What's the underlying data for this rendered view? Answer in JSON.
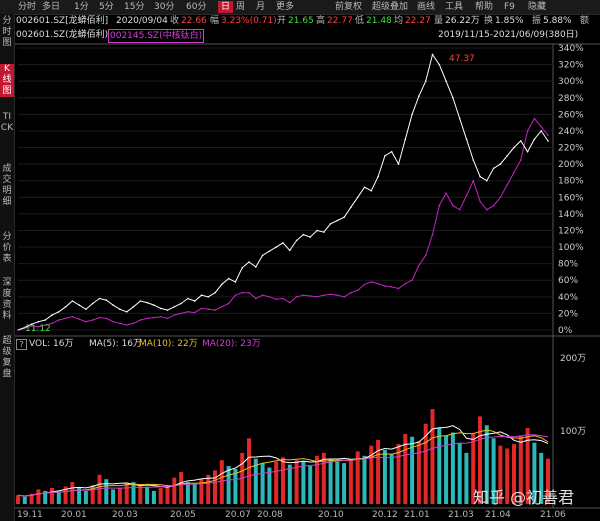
{
  "toolbar": {
    "items": [
      "分时",
      "多日",
      "1分",
      "5分",
      "15分",
      "30分",
      "60分",
      "日",
      "周",
      "月",
      "更多",
      "前复权",
      "超级叠加",
      "画线",
      "工具",
      "帮助",
      "F9",
      "隐藏"
    ],
    "active": "日"
  },
  "info": {
    "stock": "002601.SZ[龙蟒佰利]",
    "date": "2020/09/04",
    "close_label": "收",
    "close": "22.66",
    "change_label": "幅",
    "change": "3.23%(0.71)",
    "open_label": "开",
    "open": "21.65",
    "high_label": "高",
    "high": "22.77",
    "low_label": "低",
    "low": "21.48",
    "avg_label": "均",
    "avg": "22.27",
    "volume_label": "量",
    "volume": "26.22万",
    "turnover_label": "换",
    "turnover": "1.85%",
    "amplitude_label": "振",
    "amplitude": "5.88%",
    "amount_label": "额"
  },
  "legend": {
    "main": "002601.SZ(龙蟒佰利)",
    "overlay": "002145.SZ(中核钛白)",
    "range": "2019/11/15-2021/06/09(380日)"
  },
  "leftnav": {
    "items": [
      "分时图",
      "K线图",
      "TICK",
      "成交明细",
      "分价表",
      "深度资料",
      "超级复盘"
    ],
    "active": "K线图"
  },
  "volume_info": {
    "label": "VOL: 16万",
    "ma5": "MA(5): 16万",
    "ma10": "MA(10): 22万",
    "ma20": "MA(20): 23万"
  },
  "annotations": {
    "peak": "47.37",
    "start": "11.12"
  },
  "watermark": "知乎 @初善君",
  "colors": {
    "main_line": "#ffffff",
    "overlay_line": "#c026c0",
    "up": "#e02828",
    "down": "#2ab8b8",
    "ma5": "#ffffff",
    "ma10": "#e8c020",
    "ma20": "#d040d0",
    "accent": "#c0182f"
  },
  "chart_data": {
    "type": "line",
    "title": "",
    "x_tick_labels": [
      "19.11",
      "20.01",
      "20.03",
      "20.05",
      "20.07",
      "20.08",
      "20.10",
      "20.12",
      "21.01",
      "21.03",
      "21.04",
      "21.06"
    ],
    "y_tick_labels": [
      "0%",
      "20%",
      "40%",
      "60%",
      "80%",
      "100%",
      "120%",
      "140%",
      "160%",
      "180%",
      "200%",
      "220%",
      "240%",
      "260%",
      "280%",
      "300%",
      "320%",
      "340%"
    ],
    "ylim": [
      0,
      340
    ],
    "volume_axis_labels": [
      "200万",
      "100万"
    ],
    "series": [
      {
        "name": "002601.SZ(龙蟒佰利)",
        "values": [
          0,
          3,
          7,
          10,
          12,
          18,
          22,
          28,
          35,
          30,
          25,
          32,
          38,
          36,
          30,
          25,
          22,
          28,
          35,
          33,
          30,
          26,
          24,
          28,
          32,
          38,
          35,
          42,
          40,
          45,
          55,
          62,
          58,
          75,
          82,
          76,
          90,
          95,
          100,
          105,
          96,
          108,
          115,
          112,
          120,
          118,
          128,
          132,
          136,
          148,
          160,
          172,
          168,
          185,
          210,
          215,
          200,
          230,
          260,
          282,
          300,
          332,
          320,
          300,
          280,
          255,
          230,
          205,
          185,
          180,
          195,
          200,
          210,
          220,
          228,
          215,
          230,
          240,
          228
        ]
      },
      {
        "name": "002145.SZ(中核钛白)",
        "values": [
          0,
          2,
          5,
          4,
          6,
          8,
          12,
          14,
          16,
          13,
          10,
          12,
          15,
          14,
          10,
          8,
          6,
          8,
          12,
          14,
          15,
          16,
          14,
          18,
          20,
          22,
          21,
          26,
          25,
          24,
          28,
          32,
          42,
          45,
          45,
          38,
          42,
          40,
          37,
          38,
          33,
          40,
          42,
          41,
          40,
          42,
          43,
          42,
          40,
          45,
          48,
          55,
          58,
          56,
          53,
          52,
          50,
          56,
          60,
          78,
          90,
          115,
          150,
          165,
          150,
          145,
          162,
          180,
          155,
          145,
          150,
          160,
          175,
          190,
          205,
          240,
          255,
          245,
          235
        ]
      }
    ],
    "volume_values_wan": [
      12,
      10,
      14,
      20,
      18,
      22,
      16,
      24,
      30,
      22,
      18,
      26,
      40,
      34,
      20,
      22,
      28,
      30,
      26,
      24,
      18,
      22,
      26,
      36,
      44,
      30,
      28,
      34,
      40,
      46,
      60,
      52,
      48,
      70,
      90,
      62,
      56,
      50,
      58,
      64,
      54,
      60,
      58,
      52,
      66,
      70,
      62,
      58,
      56,
      60,
      72,
      66,
      80,
      88,
      74,
      68,
      82,
      96,
      92,
      86,
      110,
      130,
      104,
      94,
      98,
      84,
      70,
      96,
      120,
      108,
      90,
      80,
      76,
      82,
      94,
      104,
      84,
      70,
      62
    ],
    "volume_up": [
      1,
      0,
      1,
      1,
      0,
      1,
      0,
      1,
      1,
      0,
      0,
      1,
      1,
      0,
      0,
      1,
      1,
      0,
      1,
      0,
      0,
      1,
      1,
      1,
      1,
      0,
      0,
      1,
      1,
      1,
      1,
      0,
      0,
      1,
      1,
      0,
      0,
      0,
      1,
      1,
      0,
      1,
      0,
      0,
      1,
      1,
      0,
      0,
      0,
      1,
      1,
      0,
      1,
      1,
      0,
      0,
      1,
      1,
      0,
      1,
      1,
      1,
      0,
      0,
      0,
      0,
      0,
      1,
      1,
      0,
      0,
      1,
      1,
      1,
      1,
      1,
      0,
      0,
      1
    ]
  }
}
